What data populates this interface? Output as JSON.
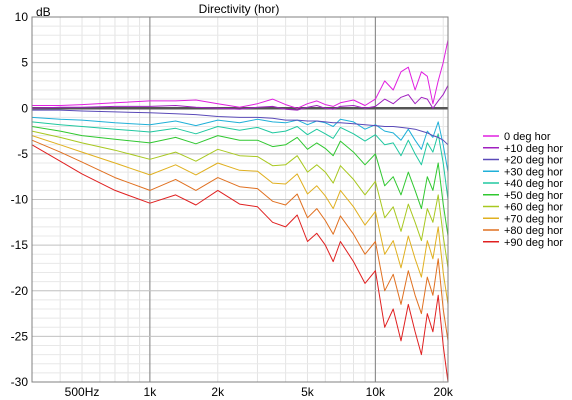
{
  "chart_data": {
    "type": "line",
    "title": "Directivity (hor)",
    "ylabel": "dB",
    "xlabel": "",
    "x_scale": "log",
    "xlim": [
      300,
      21000
    ],
    "ylim": [
      -30,
      10
    ],
    "grid": true,
    "legend_position": "right",
    "y_ticks": [
      "10",
      "5",
      "0",
      "-5",
      "-10",
      "-15",
      "-20",
      "-25",
      "-30"
    ],
    "y_tick_values": [
      10,
      5,
      0,
      -5,
      -10,
      -15,
      -20,
      -25,
      -30
    ],
    "x_ticks": [
      "500Hz",
      "1k",
      "2k",
      "5k",
      "10k",
      "20k"
    ],
    "x_tick_values": [
      500,
      1000,
      2000,
      5000,
      10000,
      20000
    ],
    "x": [
      300,
      400,
      500,
      700,
      1000,
      1300,
      1600,
      2000,
      2500,
      3000,
      3500,
      4000,
      4500,
      5000,
      5500,
      6000,
      6500,
      7000,
      8000,
      9000,
      10000,
      11000,
      12000,
      13000,
      14000,
      15000,
      16000,
      17000,
      18000,
      19000,
      20000,
      21000
    ],
    "series": [
      {
        "name": "0 deg hor",
        "color": "#e020e0",
        "values": [
          0.3,
          0.3,
          0.4,
          0.6,
          0.8,
          0.8,
          0.9,
          0.5,
          0.1,
          0.5,
          1.0,
          0.4,
          0.0,
          0.5,
          0.8,
          0.4,
          0.2,
          0.6,
          0.9,
          0.3,
          1.0,
          3.0,
          2.0,
          4.0,
          4.5,
          2.0,
          4.0,
          3.5,
          0.5,
          3.0,
          5.0,
          7.5
        ]
      },
      {
        "name": "+10 deg hor",
        "color": "#a020c0",
        "values": [
          0.0,
          0.1,
          0.1,
          0.2,
          0.2,
          0.3,
          0.1,
          0.0,
          -0.1,
          0.1,
          0.2,
          -0.1,
          -0.2,
          0.1,
          0.3,
          0.0,
          -0.1,
          0.2,
          0.3,
          0.0,
          0.2,
          1.0,
          0.5,
          1.2,
          1.5,
          0.5,
          1.2,
          1.0,
          0.0,
          0.8,
          1.5,
          2.5
        ]
      },
      {
        "name": "+20 deg hor",
        "color": "#5a4ab8",
        "values": [
          -0.2,
          -0.2,
          -0.3,
          -0.4,
          -0.5,
          -0.6,
          -0.7,
          -0.9,
          -1.0,
          -1.0,
          -1.1,
          -1.3,
          -1.3,
          -1.4,
          -1.4,
          -1.5,
          -1.6,
          -1.6,
          -1.7,
          -1.8,
          -1.9,
          -2.0,
          -2.0,
          -2.1,
          -2.2,
          -2.3,
          -2.5,
          -2.7,
          -3.0,
          -3.2,
          -3.5,
          -4.0
        ]
      },
      {
        "name": "+30 deg hor",
        "color": "#20b0d8",
        "values": [
          -1.0,
          -1.2,
          -1.3,
          -1.6,
          -1.8,
          -1.4,
          -1.9,
          -1.3,
          -1.6,
          -1.2,
          -1.5,
          -1.6,
          -1.3,
          -1.8,
          -1.4,
          -1.6,
          -2.0,
          -1.2,
          -1.5,
          -2.3,
          -1.8,
          -2.5,
          -2.7,
          -3.5,
          -2.3,
          -3.5,
          -4.5,
          -2.5,
          -3.2,
          -1.5,
          -4.0,
          -7.0
        ]
      },
      {
        "name": "+40 deg hor",
        "color": "#20c8a0",
        "values": [
          -1.5,
          -1.8,
          -2.0,
          -2.3,
          -2.6,
          -2.2,
          -2.8,
          -2.0,
          -2.4,
          -2.1,
          -2.7,
          -2.5,
          -2.0,
          -2.9,
          -2.3,
          -2.8,
          -3.3,
          -2.1,
          -2.8,
          -3.6,
          -2.9,
          -4.0,
          -3.8,
          -5.2,
          -3.5,
          -5.0,
          -6.2,
          -3.8,
          -4.8,
          -2.8,
          -6.0,
          -10.0
        ]
      },
      {
        "name": "+50 deg hor",
        "color": "#30c830",
        "values": [
          -2.0,
          -2.5,
          -3.0,
          -3.4,
          -3.8,
          -3.2,
          -3.9,
          -3.0,
          -3.5,
          -3.5,
          -4.2,
          -4.0,
          -3.2,
          -4.5,
          -3.8,
          -4.4,
          -5.2,
          -3.6,
          -4.8,
          -6.2,
          -5.0,
          -8.5,
          -7.5,
          -9.5,
          -7.0,
          -9.0,
          -11.0,
          -7.5,
          -9.0,
          -6.0,
          -10.5,
          -14.0
        ]
      },
      {
        "name": "+60 deg hor",
        "color": "#a8c820",
        "values": [
          -2.5,
          -3.2,
          -3.8,
          -4.6,
          -5.6,
          -4.8,
          -5.8,
          -4.5,
          -5.2,
          -5.3,
          -6.3,
          -6.2,
          -5.2,
          -7.0,
          -6.2,
          -7.0,
          -8.2,
          -6.3,
          -7.8,
          -9.5,
          -8.0,
          -12.0,
          -10.8,
          -13.5,
          -10.5,
          -12.5,
          -14.5,
          -11.0,
          -12.5,
          -9.5,
          -14.0,
          -17.5
        ]
      },
      {
        "name": "+70 deg hor",
        "color": "#e0b020",
        "values": [
          -3.0,
          -4.0,
          -4.8,
          -6.0,
          -7.3,
          -6.2,
          -7.3,
          -6.0,
          -6.8,
          -6.9,
          -8.2,
          -8.3,
          -7.2,
          -9.4,
          -8.5,
          -9.6,
          -11.0,
          -9.0,
          -10.8,
          -12.8,
          -11.3,
          -16.0,
          -14.5,
          -17.5,
          -14.0,
          -16.5,
          -18.5,
          -14.5,
          -16.5,
          -13.0,
          -18.0,
          -21.5
        ]
      },
      {
        "name": "+80 deg hor",
        "color": "#e07020",
        "values": [
          -3.5,
          -4.8,
          -5.9,
          -7.6,
          -9.0,
          -7.8,
          -9.0,
          -7.6,
          -8.6,
          -8.8,
          -10.2,
          -10.6,
          -9.4,
          -12.0,
          -11.0,
          -12.3,
          -13.8,
          -11.8,
          -13.8,
          -16.0,
          -14.6,
          -20.0,
          -18.2,
          -21.5,
          -17.8,
          -20.5,
          -22.5,
          -18.5,
          -20.5,
          -16.5,
          -22.0,
          -25.5
        ]
      },
      {
        "name": "+90 deg hor",
        "color": "#e02020",
        "values": [
          -4.0,
          -5.8,
          -7.2,
          -9.0,
          -10.4,
          -9.5,
          -10.6,
          -9.0,
          -10.5,
          -10.8,
          -12.5,
          -13.0,
          -11.7,
          -14.6,
          -13.7,
          -15.0,
          -16.8,
          -14.6,
          -16.8,
          -19.2,
          -17.8,
          -24.0,
          -22.0,
          -25.5,
          -21.5,
          -24.5,
          -27.0,
          -22.5,
          -24.5,
          -20.5,
          -26.0,
          -30.0
        ]
      }
    ]
  }
}
